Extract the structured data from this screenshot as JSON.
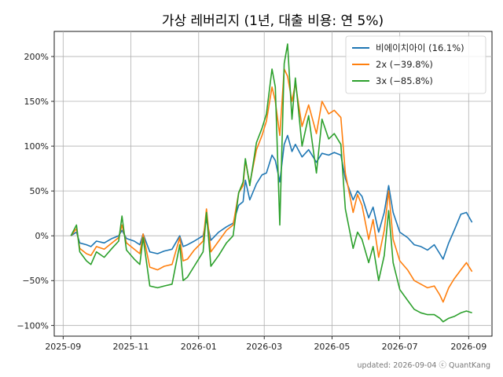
{
  "chart_data": {
    "type": "line",
    "title": "가상 레버리지 (1년, 대출 비용: 연 5%)",
    "xlabel": "",
    "ylabel": "",
    "xlim": [
      "2025-08-24",
      "2026-09-22"
    ],
    "ylim": [
      -112,
      228
    ],
    "x_ticks": [
      "2025-09",
      "2025-11",
      "2026-01",
      "2026-03",
      "2026-05",
      "2026-07",
      "2026-09"
    ],
    "x_tick_dates": [
      "2025-09-01",
      "2025-11-01",
      "2026-01-01",
      "2026-03-01",
      "2026-05-01",
      "2026-07-01",
      "2026-09-01"
    ],
    "y_ticks": [
      -100,
      -50,
      0,
      50,
      100,
      150,
      200
    ],
    "y_tick_labels": [
      "−100%",
      "−50%",
      "0%",
      "50%",
      "100%",
      "150%",
      "200%"
    ],
    "grid": true,
    "legend_position": "top-right",
    "footer": "updated: 2026-09-04 ⓒ QuantKang",
    "series": [
      {
        "name": "비에이치아이 (16.1%)",
        "color": "#1f77b4",
        "points": [
          [
            "2025-09-08",
            0
          ],
          [
            "2025-09-13",
            4
          ],
          [
            "2025-09-16",
            -8
          ],
          [
            "2025-09-22",
            -10
          ],
          [
            "2025-09-26",
            -12
          ],
          [
            "2025-10-01",
            -6
          ],
          [
            "2025-10-08",
            -8
          ],
          [
            "2025-10-15",
            -3
          ],
          [
            "2025-10-21",
            0
          ],
          [
            "2025-10-24",
            6
          ],
          [
            "2025-10-28",
            -3
          ],
          [
            "2025-11-04",
            -6
          ],
          [
            "2025-11-09",
            -10
          ],
          [
            "2025-11-12",
            2
          ],
          [
            "2025-11-18",
            -18
          ],
          [
            "2025-11-25",
            -20
          ],
          [
            "2025-12-01",
            -17
          ],
          [
            "2025-12-08",
            -15
          ],
          [
            "2025-12-15",
            0
          ],
          [
            "2025-12-18",
            -12
          ],
          [
            "2025-12-22",
            -10
          ],
          [
            "2025-12-28",
            -6
          ],
          [
            "2026-01-05",
            0
          ],
          [
            "2026-01-08",
            18
          ],
          [
            "2026-01-12",
            -5
          ],
          [
            "2026-01-19",
            4
          ],
          [
            "2026-01-26",
            10
          ],
          [
            "2026-02-01",
            14
          ],
          [
            "2026-02-06",
            34
          ],
          [
            "2026-02-10",
            38
          ],
          [
            "2026-02-12",
            62
          ],
          [
            "2026-02-16",
            40
          ],
          [
            "2026-02-22",
            58
          ],
          [
            "2026-02-27",
            68
          ],
          [
            "2026-03-03",
            70
          ],
          [
            "2026-03-08",
            90
          ],
          [
            "2026-03-11",
            84
          ],
          [
            "2026-03-15",
            60
          ],
          [
            "2026-03-19",
            102
          ],
          [
            "2026-03-22",
            112
          ],
          [
            "2026-03-26",
            94
          ],
          [
            "2026-03-29",
            102
          ],
          [
            "2026-04-04",
            88
          ],
          [
            "2026-04-10",
            96
          ],
          [
            "2026-04-17",
            82
          ],
          [
            "2026-04-22",
            92
          ],
          [
            "2026-04-28",
            90
          ],
          [
            "2026-05-03",
            93
          ],
          [
            "2026-05-09",
            90
          ],
          [
            "2026-05-13",
            64
          ],
          [
            "2026-05-20",
            40
          ],
          [
            "2026-05-24",
            50
          ],
          [
            "2026-05-28",
            44
          ],
          [
            "2026-06-03",
            20
          ],
          [
            "2026-06-07",
            32
          ],
          [
            "2026-06-12",
            4
          ],
          [
            "2026-06-17",
            26
          ],
          [
            "2026-06-21",
            56
          ],
          [
            "2026-06-25",
            26
          ],
          [
            "2026-07-01",
            4
          ],
          [
            "2026-07-08",
            -2
          ],
          [
            "2026-07-14",
            -10
          ],
          [
            "2026-07-20",
            -12
          ],
          [
            "2026-07-26",
            -16
          ],
          [
            "2026-08-01",
            -10
          ],
          [
            "2026-08-06",
            -20
          ],
          [
            "2026-08-09",
            -26
          ],
          [
            "2026-08-14",
            -8
          ],
          [
            "2026-08-19",
            6
          ],
          [
            "2026-08-25",
            24
          ],
          [
            "2026-08-30",
            26
          ],
          [
            "2026-09-04",
            15
          ]
        ]
      },
      {
        "name": "2x (−39.8%)",
        "color": "#ff7f0e",
        "points": [
          [
            "2025-09-08",
            0
          ],
          [
            "2025-09-13",
            8
          ],
          [
            "2025-09-16",
            -14
          ],
          [
            "2025-09-22",
            -20
          ],
          [
            "2025-09-26",
            -22
          ],
          [
            "2025-10-01",
            -12
          ],
          [
            "2025-10-08",
            -15
          ],
          [
            "2025-10-15",
            -8
          ],
          [
            "2025-10-21",
            -2
          ],
          [
            "2025-10-24",
            12
          ],
          [
            "2025-10-28",
            -8
          ],
          [
            "2025-11-04",
            -15
          ],
          [
            "2025-11-09",
            -20
          ],
          [
            "2025-11-12",
            2
          ],
          [
            "2025-11-18",
            -35
          ],
          [
            "2025-11-25",
            -38
          ],
          [
            "2025-12-01",
            -34
          ],
          [
            "2025-12-08",
            -32
          ],
          [
            "2025-12-15",
            -2
          ],
          [
            "2025-12-18",
            -28
          ],
          [
            "2025-12-22",
            -26
          ],
          [
            "2025-12-28",
            -16
          ],
          [
            "2026-01-05",
            -6
          ],
          [
            "2026-01-08",
            30
          ],
          [
            "2026-01-12",
            -18
          ],
          [
            "2026-01-19",
            -6
          ],
          [
            "2026-01-26",
            6
          ],
          [
            "2026-02-01",
            12
          ],
          [
            "2026-02-06",
            48
          ],
          [
            "2026-02-10",
            56
          ],
          [
            "2026-02-12",
            84
          ],
          [
            "2026-02-16",
            58
          ],
          [
            "2026-02-22",
            96
          ],
          [
            "2026-02-27",
            112
          ],
          [
            "2026-03-03",
            128
          ],
          [
            "2026-03-08",
            166
          ],
          [
            "2026-03-11",
            150
          ],
          [
            "2026-03-15",
            112
          ],
          [
            "2026-03-19",
            186
          ],
          [
            "2026-03-22",
            178
          ],
          [
            "2026-03-26",
            150
          ],
          [
            "2026-03-29",
            170
          ],
          [
            "2026-04-04",
            122
          ],
          [
            "2026-04-10",
            146
          ],
          [
            "2026-04-17",
            114
          ],
          [
            "2026-04-22",
            150
          ],
          [
            "2026-04-28",
            136
          ],
          [
            "2026-05-03",
            140
          ],
          [
            "2026-05-09",
            132
          ],
          [
            "2026-05-13",
            70
          ],
          [
            "2026-05-20",
            26
          ],
          [
            "2026-05-24",
            46
          ],
          [
            "2026-05-28",
            34
          ],
          [
            "2026-06-03",
            -4
          ],
          [
            "2026-06-07",
            18
          ],
          [
            "2026-06-12",
            -24
          ],
          [
            "2026-06-17",
            6
          ],
          [
            "2026-06-21",
            50
          ],
          [
            "2026-06-25",
            -4
          ],
          [
            "2026-07-01",
            -28
          ],
          [
            "2026-07-08",
            -38
          ],
          [
            "2026-07-14",
            -50
          ],
          [
            "2026-07-20",
            -54
          ],
          [
            "2026-07-26",
            -58
          ],
          [
            "2026-08-01",
            -56
          ],
          [
            "2026-08-06",
            -66
          ],
          [
            "2026-08-09",
            -74
          ],
          [
            "2026-08-14",
            -58
          ],
          [
            "2026-08-19",
            -48
          ],
          [
            "2026-08-25",
            -38
          ],
          [
            "2026-08-30",
            -30
          ],
          [
            "2026-09-04",
            -40
          ]
        ]
      },
      {
        "name": "3x (−85.8%)",
        "color": "#2ca02c",
        "points": [
          [
            "2025-09-08",
            0
          ],
          [
            "2025-09-13",
            12
          ],
          [
            "2025-09-16",
            -18
          ],
          [
            "2025-09-22",
            -28
          ],
          [
            "2025-09-26",
            -32
          ],
          [
            "2025-10-01",
            -18
          ],
          [
            "2025-10-08",
            -24
          ],
          [
            "2025-10-15",
            -14
          ],
          [
            "2025-10-21",
            -6
          ],
          [
            "2025-10-24",
            22
          ],
          [
            "2025-10-28",
            -16
          ],
          [
            "2025-11-04",
            -26
          ],
          [
            "2025-11-09",
            -32
          ],
          [
            "2025-11-12",
            -2
          ],
          [
            "2025-11-18",
            -56
          ],
          [
            "2025-11-25",
            -58
          ],
          [
            "2025-12-01",
            -56
          ],
          [
            "2025-12-08",
            -54
          ],
          [
            "2025-12-15",
            -10
          ],
          [
            "2025-12-18",
            -50
          ],
          [
            "2025-12-22",
            -46
          ],
          [
            "2025-12-28",
            -34
          ],
          [
            "2026-01-05",
            -18
          ],
          [
            "2026-01-08",
            26
          ],
          [
            "2026-01-12",
            -34
          ],
          [
            "2026-01-19",
            -22
          ],
          [
            "2026-01-26",
            -8
          ],
          [
            "2026-02-01",
            0
          ],
          [
            "2026-02-06",
            48
          ],
          [
            "2026-02-10",
            60
          ],
          [
            "2026-02-12",
            86
          ],
          [
            "2026-02-16",
            56
          ],
          [
            "2026-02-22",
            104
          ],
          [
            "2026-02-27",
            120
          ],
          [
            "2026-03-03",
            136
          ],
          [
            "2026-03-08",
            186
          ],
          [
            "2026-03-11",
            166
          ],
          [
            "2026-03-15",
            12
          ],
          [
            "2026-03-19",
            192
          ],
          [
            "2026-03-22",
            214
          ],
          [
            "2026-03-26",
            130
          ],
          [
            "2026-03-29",
            176
          ],
          [
            "2026-04-04",
            100
          ],
          [
            "2026-04-10",
            134
          ],
          [
            "2026-04-17",
            70
          ],
          [
            "2026-04-22",
            130
          ],
          [
            "2026-04-28",
            108
          ],
          [
            "2026-05-03",
            114
          ],
          [
            "2026-05-09",
            102
          ],
          [
            "2026-05-13",
            30
          ],
          [
            "2026-05-20",
            -14
          ],
          [
            "2026-05-24",
            4
          ],
          [
            "2026-05-28",
            -4
          ],
          [
            "2026-06-03",
            -30
          ],
          [
            "2026-06-07",
            -12
          ],
          [
            "2026-06-12",
            -50
          ],
          [
            "2026-06-17",
            -22
          ],
          [
            "2026-06-21",
            28
          ],
          [
            "2026-06-25",
            -30
          ],
          [
            "2026-07-01",
            -60
          ],
          [
            "2026-07-08",
            -72
          ],
          [
            "2026-07-14",
            -82
          ],
          [
            "2026-07-20",
            -86
          ],
          [
            "2026-07-26",
            -88
          ],
          [
            "2026-08-01",
            -88
          ],
          [
            "2026-08-06",
            -92
          ],
          [
            "2026-08-09",
            -96
          ],
          [
            "2026-08-14",
            -92
          ],
          [
            "2026-08-19",
            -90
          ],
          [
            "2026-08-25",
            -86
          ],
          [
            "2026-08-30",
            -84
          ],
          [
            "2026-09-04",
            -86
          ]
        ]
      }
    ]
  }
}
